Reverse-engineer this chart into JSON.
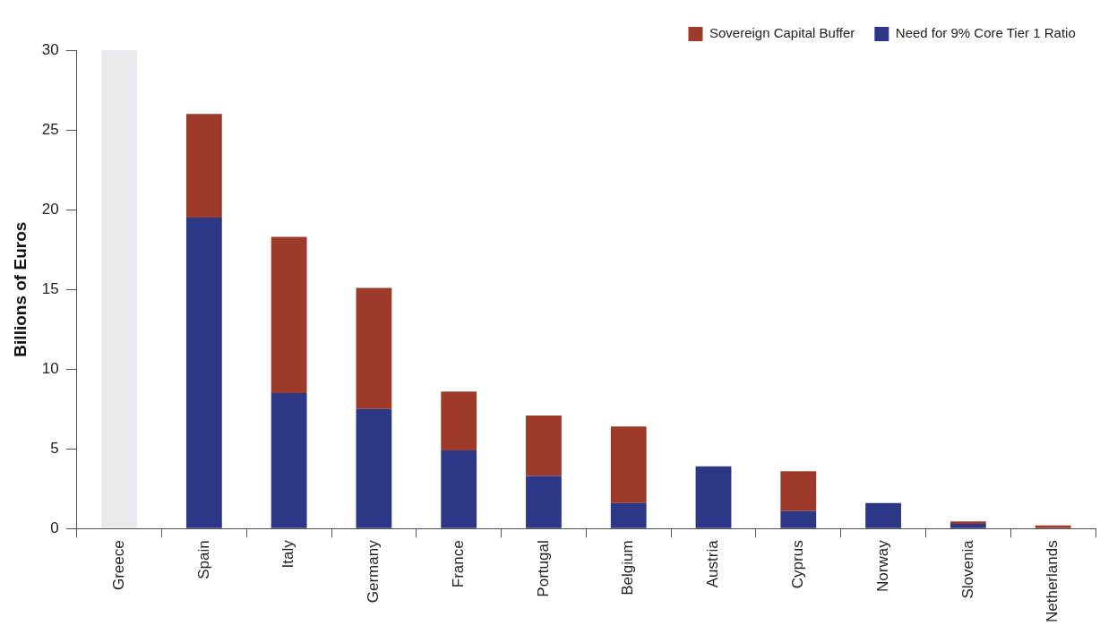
{
  "chart_data": {
    "type": "bar",
    "ylabel": "Billions of Euros",
    "categories": [
      "Greece",
      "Spain",
      "Italy",
      "Germany",
      "France",
      "Portugal",
      "Belgium",
      "Austria",
      "Cyprus",
      "Norway",
      "Slovenia",
      "Netherlands"
    ],
    "stacked": true,
    "series": [
      {
        "name": "Need for 9% Core Tier 1 Ratio",
        "color": "#2c3786",
        "values": [
          null,
          19.5,
          8.5,
          7.5,
          4.9,
          3.3,
          1.6,
          3.9,
          1.1,
          1.6,
          0.3,
          0
        ]
      },
      {
        "name": "Sovereign Capital Buffer",
        "color": "#9e3a2a",
        "values": [
          null,
          6.5,
          9.8,
          7.6,
          3.7,
          3.8,
          4.8,
          0,
          2.5,
          0,
          0.15,
          0.2
        ]
      },
      {
        "color": "#e9eaee",
        "values": [
          30,
          null,
          null,
          null,
          null,
          null,
          null,
          null,
          null,
          null,
          null,
          null
        ]
      }
    ],
    "ylim": [
      0,
      30
    ],
    "yticks": [
      0,
      5,
      10,
      15,
      20,
      25,
      30
    ],
    "grid": false,
    "legend": "top right"
  }
}
